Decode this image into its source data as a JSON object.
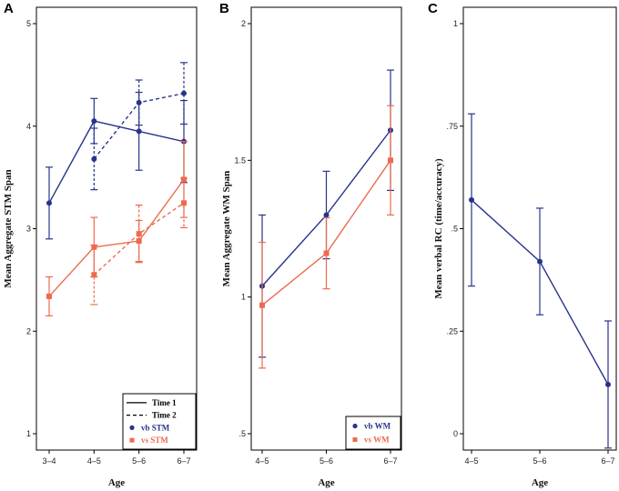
{
  "colors": {
    "blue": "#27348b",
    "orange": "#ee6a4d",
    "black": "#000000"
  },
  "chart_data": [
    {
      "panel": "A",
      "type": "line",
      "xlabel": "Age",
      "ylabel": "Mean Aggregate STM Span",
      "categories": [
        "3–4",
        "4–5",
        "5–6",
        "6–7"
      ],
      "ylim": [
        1,
        5
      ],
      "yticks": [
        1,
        2,
        3,
        4,
        5
      ],
      "ytick_labels": [
        "1",
        "2",
        "3",
        "4",
        "5"
      ],
      "series": [
        {
          "name": "vb STM Time 1",
          "color": "blue",
          "marker": "circle",
          "dash": false,
          "x": [
            0,
            1,
            2,
            3
          ],
          "values": [
            3.25,
            4.05,
            3.95,
            3.85
          ],
          "err": [
            0.35,
            0.22,
            0.38,
            0.4
          ]
        },
        {
          "name": "vb STM Time 2",
          "color": "blue",
          "marker": "circle",
          "dash": true,
          "x": [
            1,
            2,
            3
          ],
          "values": [
            3.68,
            4.23,
            4.32
          ],
          "err": [
            0.3,
            0.22,
            0.3
          ]
        },
        {
          "name": "vs STM Time 1",
          "color": "orange",
          "marker": "square",
          "dash": false,
          "x": [
            0,
            1,
            2,
            3
          ],
          "values": [
            2.34,
            2.82,
            2.88,
            3.48
          ],
          "err": [
            0.19,
            0.29,
            0.2,
            0.37
          ]
        },
        {
          "name": "vs STM Time 2",
          "color": "orange",
          "marker": "square",
          "dash": true,
          "x": [
            1,
            2,
            3
          ],
          "values": [
            2.55,
            2.95,
            3.25
          ],
          "err": [
            0.29,
            0.28,
            0.24
          ]
        }
      ],
      "legend": {
        "position": "bottom-right",
        "entries": [
          {
            "label": "Time 1",
            "kind": "line",
            "dash": false,
            "color": "black"
          },
          {
            "label": "Time 2",
            "kind": "line",
            "dash": true,
            "color": "black"
          },
          {
            "label": "vb STM",
            "kind": "circle",
            "color": "blue"
          },
          {
            "label": "vs STM",
            "kind": "square",
            "color": "orange"
          }
        ]
      }
    },
    {
      "panel": "B",
      "type": "line",
      "xlabel": "Age",
      "ylabel": "Mean Aggregate WM Span",
      "categories": [
        "4–5",
        "5–6",
        "6–7"
      ],
      "ylim": [
        0.5,
        2
      ],
      "yticks": [
        0.5,
        1,
        1.5,
        2
      ],
      "ytick_labels": [
        ".5",
        "1",
        "1.5",
        "2"
      ],
      "series": [
        {
          "name": "vb WM",
          "color": "blue",
          "marker": "circle",
          "dash": false,
          "x": [
            0,
            1,
            2
          ],
          "values": [
            1.04,
            1.3,
            1.61
          ],
          "err": [
            0.26,
            0.16,
            0.22
          ]
        },
        {
          "name": "vs WM",
          "color": "orange",
          "marker": "square",
          "dash": false,
          "x": [
            0,
            1,
            2
          ],
          "values": [
            0.97,
            1.16,
            1.5
          ],
          "err": [
            0.23,
            0.13,
            0.2
          ]
        }
      ],
      "legend": {
        "position": "bottom-right",
        "entries": [
          {
            "label": "vb WM",
            "kind": "circle",
            "color": "blue"
          },
          {
            "label": "vs WM",
            "kind": "square",
            "color": "orange"
          }
        ]
      }
    },
    {
      "panel": "C",
      "type": "line",
      "xlabel": "Age",
      "ylabel": "Mean verbal RC (time/accuracy)",
      "categories": [
        "4–5",
        "5–6",
        "6–7"
      ],
      "ylim": [
        0,
        1
      ],
      "yticks": [
        0,
        0.25,
        0.5,
        0.75,
        1
      ],
      "ytick_labels": [
        "0",
        ".25",
        ".5",
        ".75",
        "1"
      ],
      "series": [
        {
          "name": "verbal RC",
          "color": "blue",
          "marker": "circle",
          "dash": false,
          "x": [
            0,
            1,
            2
          ],
          "values": [
            0.57,
            0.42,
            0.12
          ],
          "err": [
            0.21,
            0.13,
            0.155
          ]
        }
      ],
      "legend": null
    }
  ]
}
